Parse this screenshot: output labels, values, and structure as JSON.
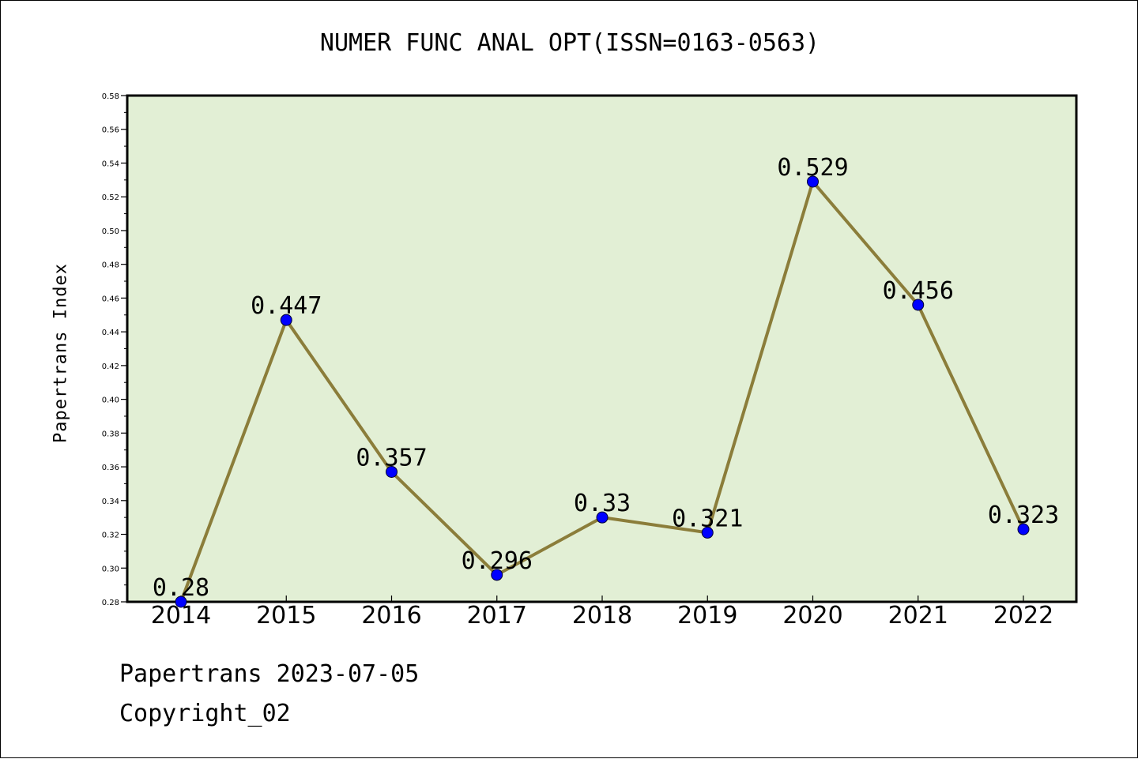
{
  "footer": {
    "line1": "Papertrans 2023-07-05",
    "line2": "Copyright_02"
  },
  "colors": {
    "plot_background": "#e2efd5",
    "line": "#8b7d3a",
    "marker": "#0000ff",
    "axis": "#000000"
  },
  "chart_data": {
    "type": "line",
    "title": "NUMER FUNC ANAL OPT(ISSN=0163-0563)",
    "xlabel": "",
    "ylabel": "Papertrans Index",
    "categories": [
      "2014",
      "2015",
      "2016",
      "2017",
      "2018",
      "2019",
      "2020",
      "2021",
      "2022"
    ],
    "series": [
      {
        "values": [
          0.28,
          0.447,
          0.357,
          0.296,
          0.33,
          0.321,
          0.529,
          0.456,
          0.323
        ],
        "labels": [
          "0.28",
          "0.447",
          "0.357",
          "0.296",
          "0.33",
          "0.321",
          "0.529",
          "0.456",
          "0.323"
        ]
      }
    ],
    "ylim": [
      0.28,
      0.58
    ],
    "yticks": [
      "0.28",
      "0.30",
      "0.32",
      "0.34",
      "0.36",
      "0.38",
      "0.40",
      "0.42",
      "0.44",
      "0.46",
      "0.48",
      "0.50",
      "0.52",
      "0.54",
      "0.56",
      "0.58"
    ],
    "grid": false
  }
}
